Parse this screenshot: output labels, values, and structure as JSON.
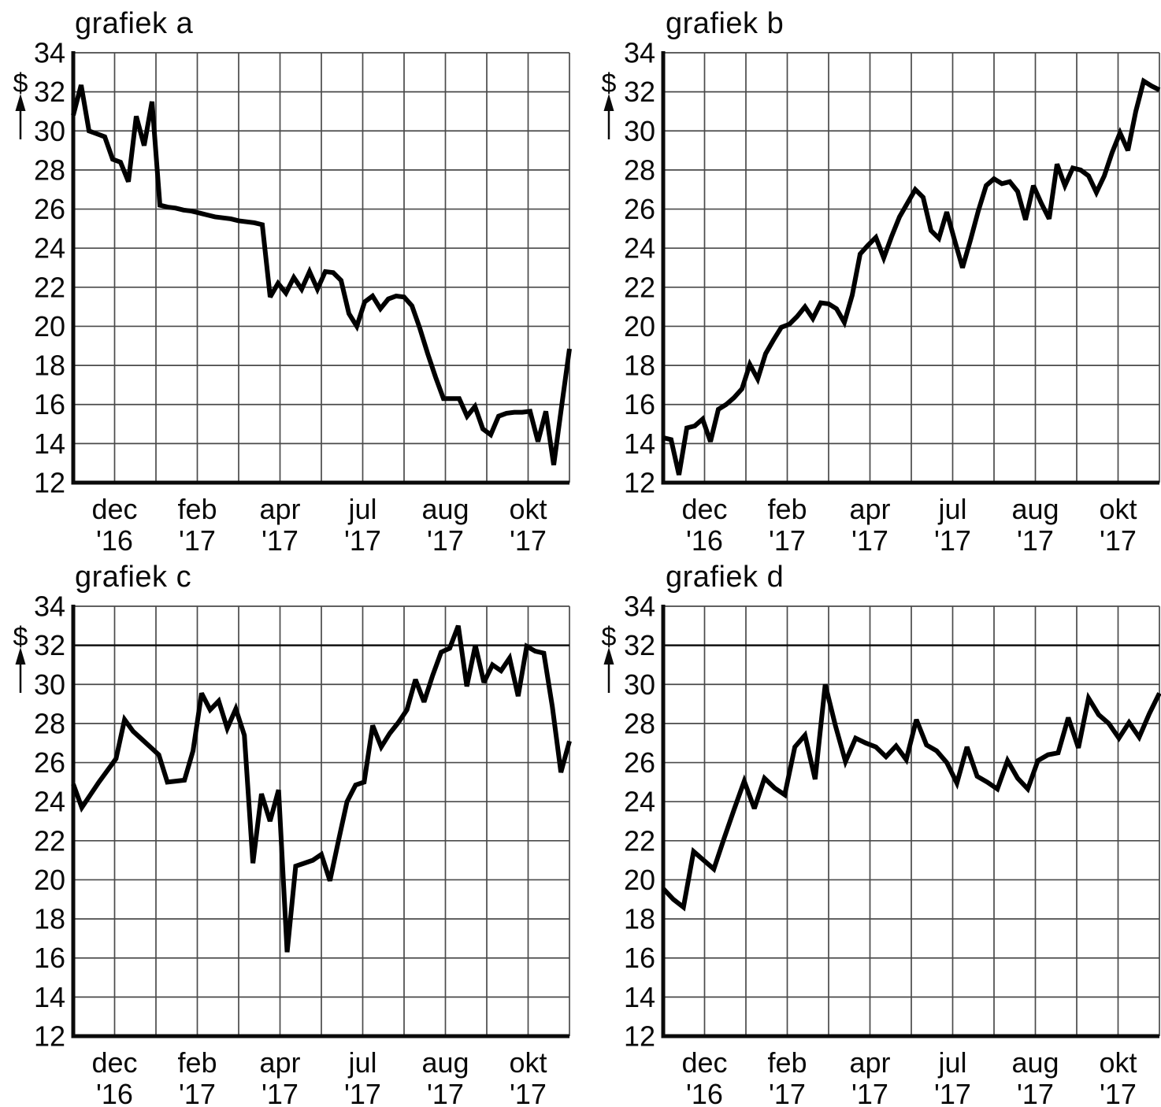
{
  "styles": {
    "background": "#ffffff",
    "grid_color": "#4a4a4a",
    "emphasized_gridline_color": "#111111",
    "axis_color": "#0a0a0a",
    "line_color": "#000000",
    "text_color": "#0a0a0a"
  },
  "chart_data": [
    {
      "type": "line",
      "title": "grafiek a",
      "ylabel": "$",
      "ylim": [
        12,
        34
      ],
      "y_ticks": [
        34,
        32,
        30,
        28,
        26,
        24,
        22,
        20,
        18,
        16,
        14,
        12
      ],
      "x_tick_labels": [
        "dec '16",
        "feb '17",
        "apr '17",
        "jul '17",
        "aug '17",
        "okt '17"
      ],
      "x_divisions": 12,
      "grid": true,
      "emphasized_gridline_at": null,
      "values": [
        30.8,
        32.35,
        30.0,
        29.85,
        29.7,
        28.55,
        28.4,
        27.4,
        30.75,
        29.25,
        31.5,
        26.2,
        26.1,
        26.05,
        25.95,
        25.9,
        25.8,
        25.7,
        25.6,
        25.55,
        25.5,
        25.4,
        25.35,
        25.3,
        25.2,
        21.5,
        22.2,
        21.7,
        22.5,
        21.9,
        22.8,
        21.9,
        22.8,
        22.75,
        22.35,
        20.65,
        20.0,
        21.25,
        21.55,
        20.9,
        21.4,
        21.55,
        21.5,
        21.05,
        19.9,
        18.6,
        17.4,
        16.3,
        16.3,
        16.3,
        15.4,
        15.9,
        14.75,
        14.45,
        15.4,
        15.55,
        15.6,
        15.6,
        15.65,
        14.1,
        15.65,
        12.9,
        15.9,
        18.85
      ]
    },
    {
      "type": "line",
      "title": "grafiek b",
      "ylabel": "$",
      "ylim": [
        12,
        34
      ],
      "y_ticks": [
        34,
        32,
        30,
        28,
        26,
        24,
        22,
        20,
        18,
        16,
        14,
        12
      ],
      "x_tick_labels": [
        "dec '16",
        "feb '17",
        "apr '17",
        "jul '17",
        "aug '17",
        "okt '17"
      ],
      "x_divisions": 12,
      "grid": true,
      "emphasized_gridline_at": null,
      "values": [
        14.3,
        14.2,
        12.4,
        14.8,
        14.9,
        15.25,
        14.1,
        15.75,
        16.0,
        16.35,
        16.8,
        18.05,
        17.3,
        18.6,
        19.3,
        19.95,
        20.1,
        20.5,
        21.0,
        20.4,
        21.2,
        21.15,
        20.9,
        20.2,
        21.6,
        23.7,
        24.15,
        24.55,
        23.5,
        24.6,
        25.6,
        26.3,
        27.0,
        26.6,
        24.9,
        24.5,
        25.85,
        24.4,
        23.0,
        24.4,
        25.9,
        27.2,
        27.55,
        27.3,
        27.4,
        26.9,
        25.45,
        27.2,
        26.3,
        25.5,
        28.3,
        27.2,
        28.1,
        28.0,
        27.7,
        26.85,
        27.7,
        28.9,
        29.9,
        29.0,
        31.0,
        32.55,
        32.3,
        32.1
      ]
    },
    {
      "type": "line",
      "title": "grafiek c",
      "ylabel": "$",
      "ylim": [
        12,
        34
      ],
      "y_ticks": [
        34,
        32,
        30,
        28,
        26,
        24,
        22,
        20,
        18,
        16,
        14,
        12
      ],
      "x_tick_labels": [
        "dec '16",
        "feb '17",
        "apr '17",
        "jul '17",
        "aug '17",
        "okt '17"
      ],
      "x_divisions": 12,
      "grid": true,
      "emphasized_gridline_at": 32,
      "values": [
        24.9,
        23.7,
        24.35,
        25.0,
        25.6,
        26.2,
        28.2,
        27.6,
        27.2,
        26.8,
        26.4,
        25.0,
        25.05,
        25.1,
        26.6,
        29.55,
        28.7,
        29.15,
        27.75,
        28.75,
        27.4,
        20.85,
        24.4,
        23.0,
        24.6,
        16.3,
        20.7,
        20.85,
        21.0,
        21.3,
        19.95,
        22.0,
        24.0,
        24.85,
        25.0,
        27.9,
        26.8,
        27.5,
        28.05,
        28.7,
        30.25,
        29.1,
        30.45,
        31.65,
        31.85,
        33.0,
        29.9,
        32.0,
        30.1,
        31.0,
        30.7,
        31.35,
        29.4,
        31.95,
        31.7,
        31.6,
        28.85,
        25.5,
        27.1
      ]
    },
    {
      "type": "line",
      "title": "grafiek d",
      "ylabel": "$",
      "ylim": [
        12,
        34
      ],
      "y_ticks": [
        34,
        32,
        30,
        28,
        26,
        24,
        22,
        20,
        18,
        16,
        14,
        12
      ],
      "x_tick_labels": [
        "dec '16",
        "feb '17",
        "apr '17",
        "jul '17",
        "aug '17",
        "okt '17"
      ],
      "x_divisions": 12,
      "grid": true,
      "emphasized_gridline_at": 32,
      "values": [
        19.55,
        19.0,
        18.6,
        21.45,
        21.0,
        20.55,
        22.1,
        23.6,
        25.05,
        23.65,
        25.2,
        24.7,
        24.35,
        26.8,
        27.4,
        25.15,
        30.0,
        27.9,
        26.05,
        27.25,
        27.0,
        26.8,
        26.3,
        26.85,
        26.15,
        28.2,
        26.9,
        26.6,
        26.0,
        24.95,
        26.8,
        25.3,
        25.0,
        24.65,
        26.1,
        25.2,
        24.65,
        26.1,
        26.4,
        26.5,
        28.3,
        26.75,
        29.3,
        28.45,
        28.0,
        27.25,
        28.05,
        27.3,
        28.5,
        29.55
      ]
    }
  ]
}
